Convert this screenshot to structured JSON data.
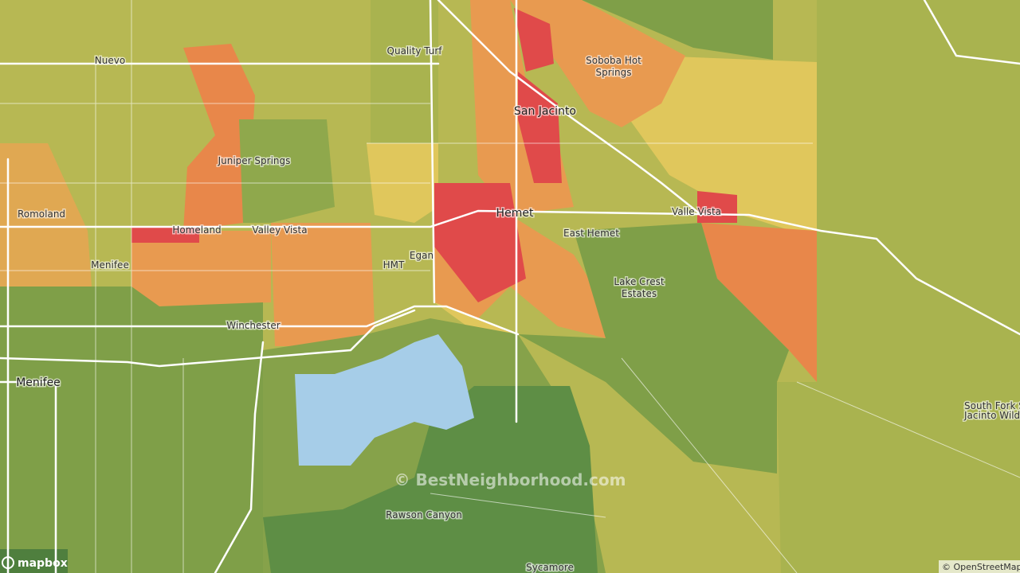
{
  "map": {
    "places": [
      {
        "lines": [
          "Nuevo"
        ]
      },
      {
        "lines": [
          "Quality Turf"
        ]
      },
      {
        "lines": [
          "Soboba Hot",
          "Springs"
        ]
      },
      {
        "lines": [
          "San Jacinto"
        ]
      },
      {
        "lines": [
          "Juniper Springs"
        ]
      },
      {
        "lines": [
          "Romoland"
        ]
      },
      {
        "lines": [
          "Homeland"
        ]
      },
      {
        "lines": [
          "Valley Vista"
        ]
      },
      {
        "lines": [
          "Hemet"
        ]
      },
      {
        "lines": [
          "Valle Vista"
        ]
      },
      {
        "lines": [
          "East Hemet"
        ]
      },
      {
        "lines": [
          "Menifee"
        ]
      },
      {
        "lines": [
          "Egan"
        ]
      },
      {
        "lines": [
          "HMT"
        ]
      },
      {
        "lines": [
          "Lake Crest",
          "Estates"
        ]
      },
      {
        "lines": [
          "Winchester"
        ]
      },
      {
        "lines": [
          "Menifee"
        ]
      },
      {
        "lines": [
          "South Fork San",
          "Jacinto Wilderness"
        ]
      },
      {
        "lines": [
          "Rawson Canyon"
        ]
      },
      {
        "lines": [
          "Sycamore"
        ]
      }
    ],
    "watermark": "© BestNeighborhood.com",
    "logo": "mapbox",
    "attribution": "© OpenStreetMap"
  }
}
